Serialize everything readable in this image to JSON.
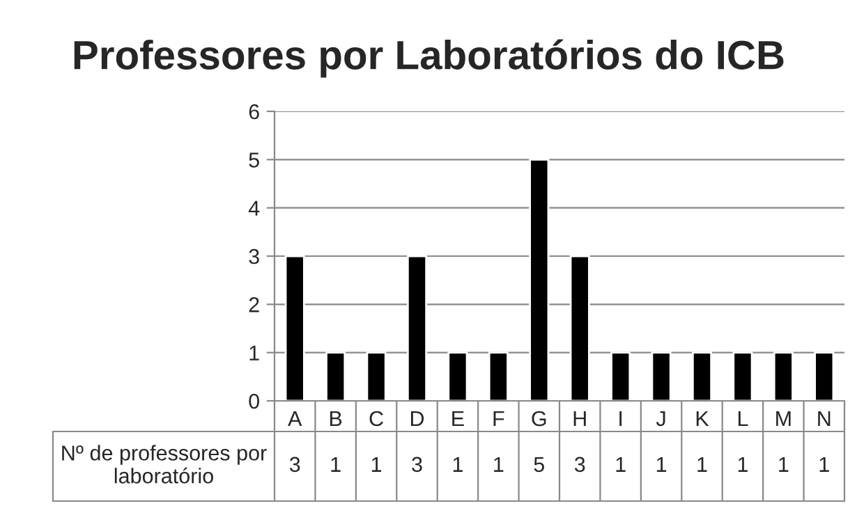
{
  "chart_data": {
    "type": "bar",
    "title": "Professores por Laboratórios do ICB",
    "categories": [
      "A",
      "B",
      "C",
      "D",
      "E",
      "F",
      "G",
      "H",
      "I",
      "J",
      "K",
      "L",
      "M",
      "N"
    ],
    "series": [
      {
        "name": "Nº de professores por laboratório",
        "color": "#000000",
        "values": [
          3,
          1,
          1,
          3,
          1,
          1,
          5,
          3,
          1,
          1,
          1,
          1,
          1,
          1
        ]
      }
    ],
    "ylim": [
      0,
      6
    ],
    "yticks": [
      0,
      1,
      2,
      3,
      4,
      5,
      6
    ],
    "grid": "y",
    "data_labels": true
  }
}
